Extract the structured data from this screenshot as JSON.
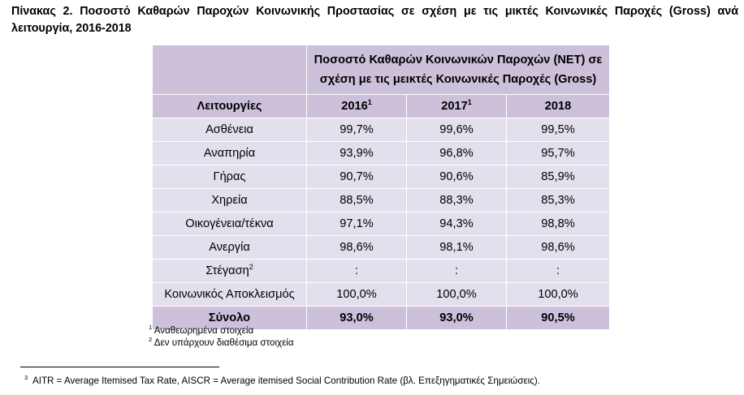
{
  "caption": "Πίνακας 2. Ποσοστό Καθαρών Παροχών Κοινωνικής Προστασίας σε σχέση με τις μικτές Κοινωνικές Παροχές (Gross) ανά λειτουργία, 2016-2018",
  "table": {
    "merged_header": "Ποσοστό Καθαρών Κοινωνικών Παροχών (NET) σε σχέση με τις μεικτές Κοινωνικές Παροχές (Gross)",
    "column_headers": [
      {
        "label": "Λειτουργίες",
        "sup": ""
      },
      {
        "label": "2016",
        "sup": "1"
      },
      {
        "label": "2017",
        "sup": "1"
      },
      {
        "label": "2018",
        "sup": ""
      }
    ],
    "rows": [
      {
        "label": "Ασθένεια",
        "sup": "",
        "values": [
          "99,7%",
          "99,6%",
          "99,5%"
        ]
      },
      {
        "label": "Αναπηρία",
        "sup": "",
        "values": [
          "93,9%",
          "96,8%",
          "95,7%"
        ]
      },
      {
        "label": "Γήρας",
        "sup": "",
        "values": [
          "90,7%",
          "90,6%",
          "85,9%"
        ]
      },
      {
        "label": "Χηρεία",
        "sup": "",
        "values": [
          "88,5%",
          "88,3%",
          "85,3%"
        ]
      },
      {
        "label": "Οικογένεια/τέκνα",
        "sup": "",
        "values": [
          "97,1%",
          "94,3%",
          "98,8%"
        ]
      },
      {
        "label": "Ανεργία",
        "sup": "",
        "values": [
          "98,6%",
          "98,1%",
          "98,6%"
        ]
      },
      {
        "label": "Στέγαση",
        "sup": "2",
        "values": [
          ":",
          ":",
          ":"
        ]
      },
      {
        "label": "Κοινωνικός Αποκλεισμός",
        "sup": "",
        "values": [
          "100,0%",
          "100,0%",
          "100,0%"
        ]
      }
    ],
    "total": {
      "label": "Σύνολο",
      "values": [
        "93,0%",
        "93,0%",
        "90,5%"
      ]
    }
  },
  "notes": [
    {
      "sup": "1",
      "text": "Αναθεωρημένα στοιχεία"
    },
    {
      "sup": "2",
      "text": "Δεν υπάρχουν διαθέσιμα στοιχεία"
    }
  ],
  "footnote": {
    "sup": "3",
    "text": "AITR = Average Itemised Tax Rate, AISCR = Average itemised Social Contribution Rate (βλ. Επεξηγηματικές Σημειώσεις)."
  },
  "colors": {
    "header_fill": "#ccc0da",
    "row_fill": "#e4dfec"
  }
}
